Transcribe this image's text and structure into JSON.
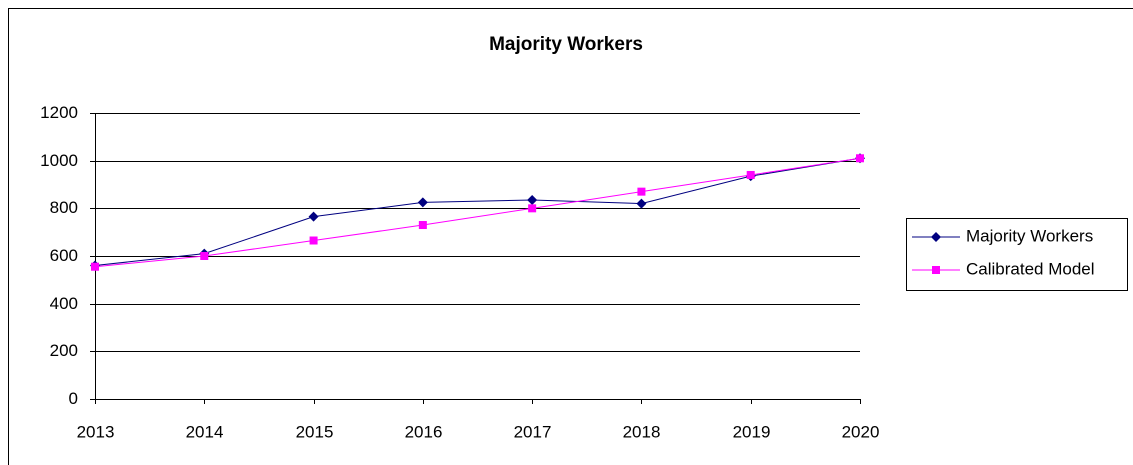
{
  "chart_data": {
    "type": "line",
    "title": "Majority Workers",
    "categories": [
      "2013",
      "2014",
      "2015",
      "2016",
      "2017",
      "2018",
      "2019",
      "2020"
    ],
    "series": [
      {
        "name": "Majority Workers",
        "color": "#000080",
        "marker": "diamond",
        "values": [
          560,
          610,
          765,
          825,
          835,
          820,
          935,
          1010
        ]
      },
      {
        "name": "Calibrated Model",
        "color": "#ff00ff",
        "marker": "square",
        "values": [
          555,
          600,
          665,
          730,
          800,
          870,
          940,
          1010
        ]
      }
    ],
    "ylim": [
      0,
      1200
    ],
    "yticks": [
      0,
      200,
      400,
      600,
      800,
      1000,
      1200
    ],
    "grid": true,
    "legend": "right"
  }
}
